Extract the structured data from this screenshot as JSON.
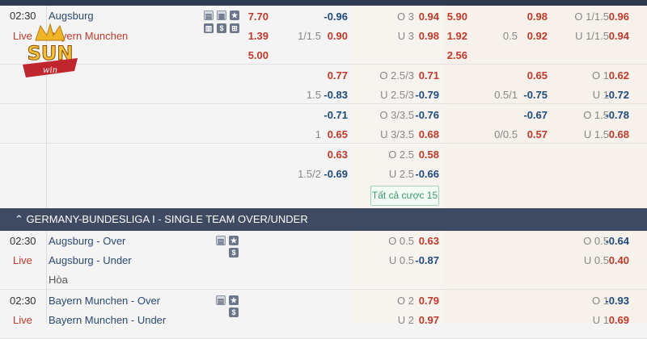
{
  "colors": {
    "positive": "#c0392b",
    "negative": "#1f4a7d",
    "header": "#3e4a62"
  },
  "logo": {
    "text": "SUN",
    "sub": "win"
  },
  "match1": {
    "time": "02:30",
    "status": "Live",
    "teams": [
      "Augsburg",
      "Bayern Munchen"
    ],
    "icons": [
      "scoreboard-icon",
      "stats-board-icon",
      "star-icon",
      "bar-chart-icon",
      "dollar-icon",
      "lineup-icon"
    ],
    "blocks": [
      [
        {
          "ft1x2": "7.70",
          "hdpO": "-0.96",
          "ouL": "O 3",
          "ouO": "0.94",
          "ht1x2": "5.90",
          "hhO": "0.98",
          "houL": "O 1/1.5",
          "houO": "0.96"
        },
        {
          "ft1x2": "1.39",
          "hdpL": "1/1.5",
          "hdpO": "0.90",
          "ouL": "U 3",
          "ouO": "0.98",
          "ht1x2": "1.92",
          "hhL": "0.5",
          "hhO": "0.92",
          "houL": "U 1/1.5",
          "houO": "0.94"
        },
        {
          "ft1x2": "5.00",
          "ht1x2": "2.56"
        }
      ],
      [
        {
          "hdpO": "0.77",
          "ouL": "O 2.5/3",
          "ouO": "0.71",
          "hhO": "0.65",
          "houL": "O 1",
          "houO": "0.62"
        },
        {
          "hdpL": "1.5",
          "hdpO": "-0.83",
          "ouL": "U 2.5/3",
          "ouO": "-0.79",
          "hhL": "0.5/1",
          "hhO": "-0.75",
          "houL": "U 1",
          "houO": "-0.72"
        }
      ],
      [
        {
          "hdpO": "-0.71",
          "ouL": "O 3/3.5",
          "ouO": "-0.76",
          "hhO": "-0.67",
          "houL": "O 1.5",
          "houO": "-0.78"
        },
        {
          "hdpL": "1",
          "hdpO": "0.65",
          "ouL": "U 3/3.5",
          "ouO": "0.68",
          "hhL": "0/0.5",
          "hhO": "0.57",
          "houL": "U 1.5",
          "houO": "0.68"
        }
      ],
      [
        {
          "hdpO": "0.63",
          "ouL": "O 2.5",
          "ouO": "0.58"
        },
        {
          "hdpL": "1.5/2",
          "hdpO": "-0.69",
          "ouL": "U 2.5",
          "ouO": "-0.66"
        }
      ]
    ],
    "all_bets": "Tất cả cược 15"
  },
  "section": {
    "title": "GERMANY-BUNDESLIGA I - SINGLE TEAM OVER/UNDER"
  },
  "match2": {
    "time": "02:30",
    "status": "Live",
    "rows": [
      {
        "team": "Augsburg - Over",
        "ouL": "O 0.5",
        "ouO": "0.63",
        "houL": "O 0.5",
        "houO": "-0.64"
      },
      {
        "team": "Augsburg - Under",
        "ouL": "U 0.5",
        "ouO": "-0.87",
        "houL": "U 0.5",
        "houO": "0.40"
      },
      {
        "team": "Hòa"
      }
    ]
  },
  "match3": {
    "time": "02:30",
    "status": "Live",
    "rows": [
      {
        "team": "Bayern Munchen - Over",
        "ouL": "O 2",
        "ouO": "0.79",
        "houL": "O 1",
        "houO": "-0.93"
      },
      {
        "team": "Bayern Munchen - Under",
        "ouL": "U 2",
        "ouO": "0.97",
        "houL": "U 1",
        "houO": "0.69"
      }
    ]
  }
}
